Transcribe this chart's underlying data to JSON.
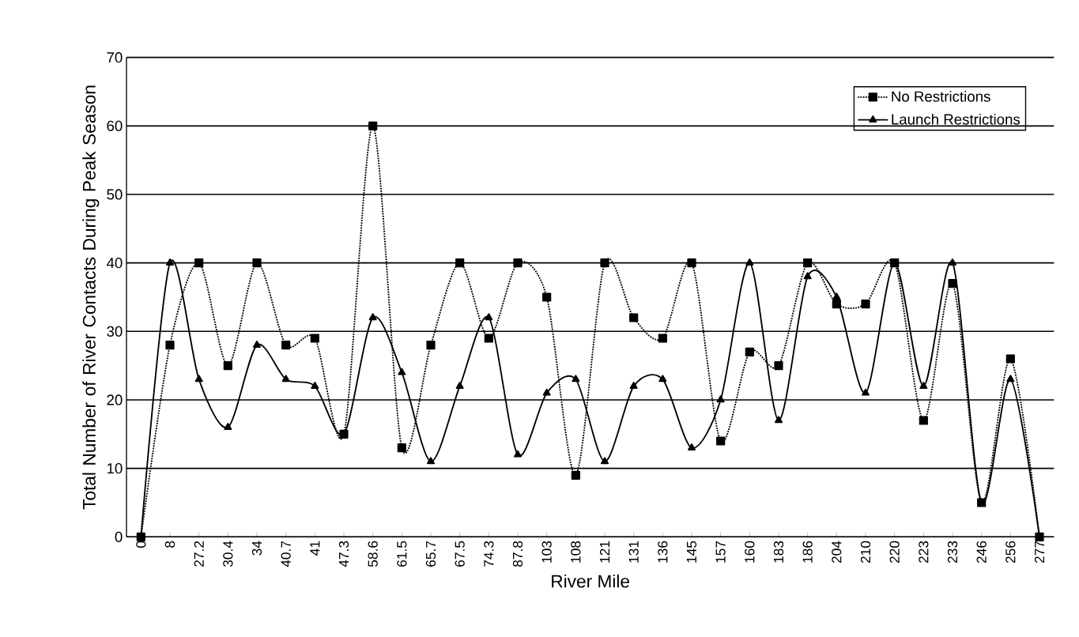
{
  "chart_data": {
    "type": "line",
    "xlabel": "River Mile",
    "ylabel": "Total Number of River Contacts During Peak Season",
    "categories": [
      "0",
      "8",
      "27.2",
      "30.4",
      "34",
      "40.7",
      "41",
      "47.3",
      "58.6",
      "61.5",
      "65.7",
      "67.5",
      "74.3",
      "87.8",
      "103",
      "108",
      "121",
      "131",
      "136",
      "145",
      "157",
      "160",
      "183",
      "186",
      "204",
      "210",
      "220",
      "223",
      "233",
      "246",
      "256",
      "277"
    ],
    "series": [
      {
        "name": "No Restrictions",
        "color": "#000000",
        "marker": "square",
        "line_style": "dotted",
        "values": [
          0,
          28,
          40,
          25,
          40,
          28,
          29,
          15,
          60,
          13,
          28,
          40,
          29,
          40,
          35,
          9,
          40,
          32,
          29,
          40,
          14,
          27,
          25,
          40,
          34,
          34,
          40,
          17,
          37,
          5,
          26,
          0
        ]
      },
      {
        "name": "Launch Restrictions",
        "color": "#000000",
        "marker": "triangle",
        "line_style": "solid",
        "values": [
          0,
          40,
          23,
          16,
          28,
          23,
          22,
          15,
          32,
          24,
          11,
          22,
          32,
          12,
          21,
          23,
          11,
          22,
          23,
          13,
          20,
          40,
          17,
          38,
          35,
          21,
          40,
          22,
          40,
          5,
          23,
          0
        ]
      }
    ],
    "ylim": [
      0,
      70
    ],
    "yticks": [
      0,
      10,
      20,
      30,
      40,
      50,
      60,
      70
    ],
    "grid": "y",
    "legend": "top right"
  }
}
